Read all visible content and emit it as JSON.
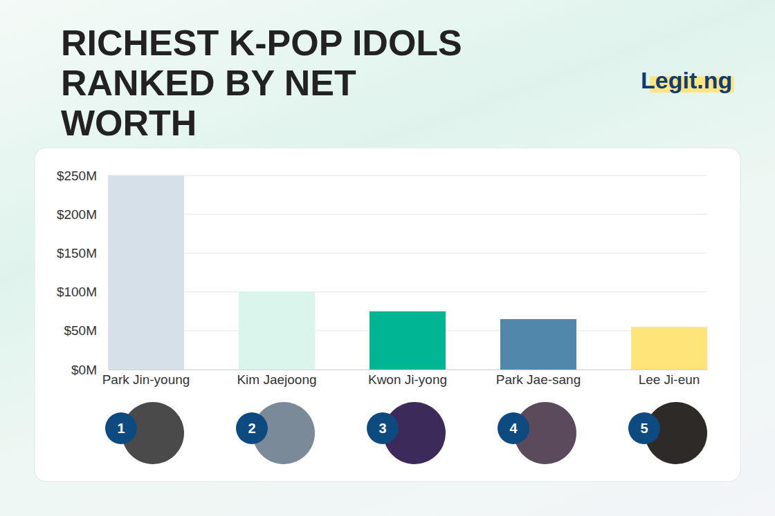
{
  "chart_data": {
    "type": "bar",
    "title": "RICHEST K-POP IDOLS RANKED BY NET WORTH",
    "source": "Legit.ng",
    "categories": [
      "Park Jin-young",
      "Kim Jaejoong",
      "Kwon Ji-yong",
      "Park Jae-sang",
      "Lee Ji-eun"
    ],
    "values": [
      250,
      100,
      75,
      65,
      55
    ],
    "ranks": [
      1,
      2,
      3,
      4,
      5
    ],
    "colors": [
      "#d6e0e8",
      "#d9f5ec",
      "#00b592",
      "#5187ab",
      "#ffe47a"
    ],
    "ylim": [
      0,
      250
    ],
    "yticks": [
      {
        "value": 0,
        "label": "$0M"
      },
      {
        "value": 50,
        "label": "$50M"
      },
      {
        "value": 100,
        "label": "$100M"
      },
      {
        "value": 150,
        "label": "$150M"
      },
      {
        "value": 200,
        "label": "$200M"
      },
      {
        "value": 250,
        "label": "$250M"
      }
    ],
    "grid": true
  }
}
